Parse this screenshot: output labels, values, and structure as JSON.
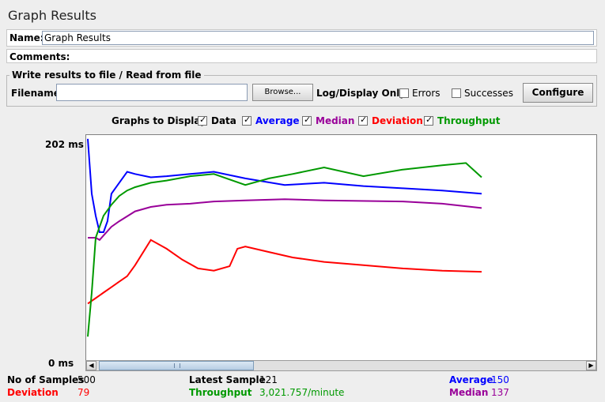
{
  "panel": {
    "title": "Graph Results",
    "name_label": "Name:",
    "name_value": "Graph Results",
    "comments_label": "Comments:"
  },
  "file": {
    "legend": "Write results to file / Read from file",
    "filename_label": "Filename",
    "filename_value": "",
    "browse_label": "Browse...",
    "log_display_label": "Log/Display Only:",
    "errors_label": "Errors",
    "errors_checked": false,
    "successes_label": "Successes",
    "successes_checked": false,
    "configure_label": "Configure"
  },
  "graphs_to_display": {
    "label": "Graphs to Display",
    "options": [
      {
        "label": "Data",
        "checked": true,
        "color": "#000000"
      },
      {
        "label": "Average",
        "checked": true,
        "color": "#0000ff"
      },
      {
        "label": "Median",
        "checked": true,
        "color": "#990099"
      },
      {
        "label": "Deviation",
        "checked": true,
        "color": "#ff0000"
      },
      {
        "label": "Throughput",
        "checked": true,
        "color": "#009900"
      }
    ]
  },
  "graph": {
    "y_max_label": "202 ms",
    "y_min_label": "0 ms"
  },
  "chart_data": {
    "type": "line",
    "ylim": [
      0,
      202
    ],
    "x_range": [
      0,
      500
    ],
    "series": [
      {
        "name": "Average",
        "color": "#0000ff",
        "x": [
          0,
          5,
          10,
          15,
          20,
          25,
          30,
          40,
          50,
          60,
          80,
          100,
          130,
          160,
          200,
          250,
          300,
          350,
          400,
          450,
          500
        ],
        "y": [
          200,
          150,
          130,
          115,
          115,
          125,
          150,
          160,
          170,
          168,
          165,
          166,
          168,
          170,
          164,
          158,
          160,
          157,
          155,
          153,
          150
        ]
      },
      {
        "name": "Median",
        "color": "#990099",
        "x": [
          0,
          5,
          10,
          15,
          20,
          30,
          40,
          60,
          80,
          100,
          130,
          160,
          200,
          250,
          300,
          400,
          450,
          500
        ],
        "y": [
          110,
          110,
          110,
          108,
          112,
          120,
          125,
          134,
          138,
          140,
          141,
          143,
          144,
          145,
          144,
          143,
          141,
          137
        ]
      },
      {
        "name": "Deviation",
        "color": "#ff0000",
        "x": [
          0,
          10,
          20,
          30,
          40,
          50,
          60,
          80,
          100,
          120,
          140,
          160,
          180,
          190,
          200,
          230,
          260,
          300,
          350,
          400,
          450,
          500
        ],
        "y": [
          50,
          55,
          60,
          65,
          70,
          75,
          85,
          108,
          100,
          90,
          82,
          80,
          84,
          100,
          102,
          97,
          92,
          88,
          85,
          82,
          80,
          79
        ]
      },
      {
        "name": "Throughput",
        "color": "#009900",
        "x": [
          0,
          5,
          10,
          20,
          30,
          40,
          50,
          60,
          80,
          100,
          130,
          160,
          200,
          230,
          260,
          300,
          350,
          400,
          450,
          480,
          500
        ],
        "y": [
          20,
          60,
          110,
          130,
          140,
          148,
          153,
          156,
          160,
          162,
          166,
          168,
          158,
          164,
          168,
          174,
          166,
          172,
          176,
          178,
          165
        ]
      }
    ]
  },
  "stats": {
    "samples_label": "No of Samples",
    "samples_value": "500",
    "latest_label": "Latest Sample",
    "latest_value": "121",
    "average_label": "Average",
    "average_value": "150",
    "deviation_label": "Deviation",
    "deviation_value": "79",
    "throughput_label": "Throughput",
    "throughput_value": "3,021.757/minute",
    "median_label": "Median",
    "median_value": "137"
  },
  "colors": {
    "average": "#0000ff",
    "median": "#990099",
    "deviation": "#ff0000",
    "throughput": "#009900"
  }
}
